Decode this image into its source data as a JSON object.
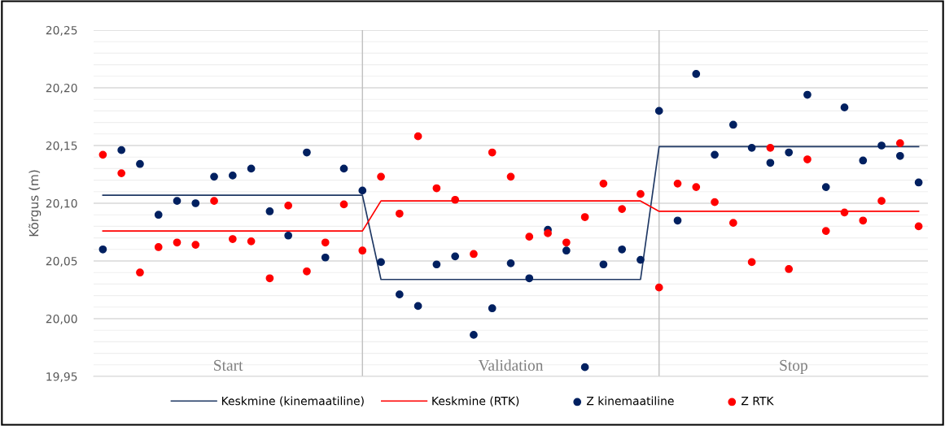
{
  "chart_data": {
    "type": "scatter",
    "ylabel": "Kõrgus (m)",
    "categories": [
      null,
      null,
      null,
      null,
      null,
      null,
      null,
      null,
      null,
      null,
      null,
      null,
      null,
      null,
      null,
      null,
      null,
      null,
      null,
      null,
      null,
      null,
      null,
      null,
      null,
      null,
      null,
      null,
      null,
      null,
      null,
      null,
      null,
      null,
      null,
      null,
      null,
      null,
      null,
      null,
      null,
      null,
      null,
      null,
      null
    ],
    "series": [
      {
        "name": "Keskmine (kinemaatiline)",
        "type": "line",
        "marker": "none",
        "color": "#1f3864",
        "values": [
          20.107,
          20.107,
          20.107,
          20.107,
          20.107,
          20.107,
          20.107,
          20.107,
          20.107,
          20.107,
          20.107,
          20.107,
          20.107,
          20.107,
          20.107,
          20.034,
          20.034,
          20.034,
          20.034,
          20.034,
          20.034,
          20.034,
          20.034,
          20.034,
          20.034,
          20.034,
          20.034,
          20.034,
          20.034,
          20.034,
          20.149,
          20.149,
          20.149,
          20.149,
          20.149,
          20.149,
          20.149,
          20.149,
          20.149,
          20.149,
          20.149,
          20.149,
          20.149,
          20.149,
          20.149
        ]
      },
      {
        "name": "Keskmine (RTK)",
        "type": "line",
        "marker": "none",
        "color": "#ff0000",
        "values": [
          20.076,
          20.076,
          20.076,
          20.076,
          20.076,
          20.076,
          20.076,
          20.076,
          20.076,
          20.076,
          20.076,
          20.076,
          20.076,
          20.076,
          20.076,
          20.102,
          20.102,
          20.102,
          20.102,
          20.102,
          20.102,
          20.102,
          20.102,
          20.102,
          20.102,
          20.102,
          20.102,
          20.102,
          20.102,
          20.102,
          20.093,
          20.093,
          20.093,
          20.093,
          20.093,
          20.093,
          20.093,
          20.093,
          20.093,
          20.093,
          20.093,
          20.093,
          20.093,
          20.093,
          20.093
        ]
      },
      {
        "name": "Z kinemaatiline",
        "color": "#002060",
        "values": [
          20.06,
          20.146,
          20.134,
          20.09,
          20.102,
          20.1,
          20.123,
          20.124,
          20.13,
          20.093,
          20.072,
          20.144,
          20.053,
          20.13,
          20.111,
          20.049,
          20.021,
          20.011,
          20.047,
          20.054,
          19.986,
          20.009,
          20.048,
          20.035,
          20.077,
          20.059,
          19.958,
          20.047,
          20.06,
          20.051,
          20.18,
          20.085,
          20.212,
          20.142,
          20.168,
          20.148,
          20.135,
          20.144,
          20.194,
          20.114,
          20.183,
          20.137,
          20.15,
          20.141,
          20.118
        ]
      },
      {
        "name": "Z RTK",
        "color": "#ff0000",
        "values": [
          20.142,
          20.126,
          20.04,
          20.062,
          20.066,
          20.064,
          20.102,
          20.069,
          20.067,
          20.035,
          20.098,
          20.041,
          20.066,
          20.099,
          20.059,
          20.123,
          20.091,
          20.158,
          20.113,
          20.103,
          20.056,
          20.144,
          20.123,
          20.071,
          20.074,
          20.066,
          20.088,
          20.117,
          20.095,
          20.108,
          20.027,
          20.117,
          20.114,
          20.101,
          20.083,
          20.049,
          20.148,
          20.043,
          20.138,
          20.076,
          20.092,
          20.085,
          20.102,
          20.152,
          20.08
        ]
      }
    ],
    "ylim": [
      19.95,
      20.25
    ],
    "yticks": [
      {
        "value": 19.95,
        "label": "19,95"
      },
      {
        "value": 19.96,
        "label": null
      },
      {
        "value": 19.97,
        "label": null
      },
      {
        "value": 19.98,
        "label": null
      },
      {
        "value": 19.99,
        "label": null
      },
      {
        "value": 20.0,
        "label": "20,00"
      },
      {
        "value": 20.01,
        "label": null
      },
      {
        "value": 20.02,
        "label": null
      },
      {
        "value": 20.03,
        "label": null
      },
      {
        "value": 20.04,
        "label": null
      },
      {
        "value": 20.05,
        "label": "20,05"
      },
      {
        "value": 20.06,
        "label": null
      },
      {
        "value": 20.07,
        "label": null
      },
      {
        "value": 20.08,
        "label": null
      },
      {
        "value": 20.09,
        "label": null
      },
      {
        "value": 20.1,
        "label": "20,10"
      },
      {
        "value": 20.11,
        "label": null
      },
      {
        "value": 20.12,
        "label": null
      },
      {
        "value": 20.13,
        "label": null
      },
      {
        "value": 20.14,
        "label": null
      },
      {
        "value": 20.15,
        "label": "20,15"
      },
      {
        "value": 20.16,
        "label": null
      },
      {
        "value": 20.17,
        "label": null
      },
      {
        "value": 20.18,
        "label": null
      },
      {
        "value": 20.19,
        "label": null
      },
      {
        "value": 20.2,
        "label": "20,20"
      },
      {
        "value": 20.21,
        "label": null
      },
      {
        "value": 20.22,
        "label": null
      },
      {
        "value": 20.23,
        "label": null
      },
      {
        "value": 20.24,
        "label": null
      },
      {
        "value": 20.25,
        "label": "20,25"
      }
    ],
    "grid": "y",
    "marker": "circle",
    "legend": "bottom",
    "annotations": [
      "Start",
      "Validation",
      "Stop"
    ]
  }
}
